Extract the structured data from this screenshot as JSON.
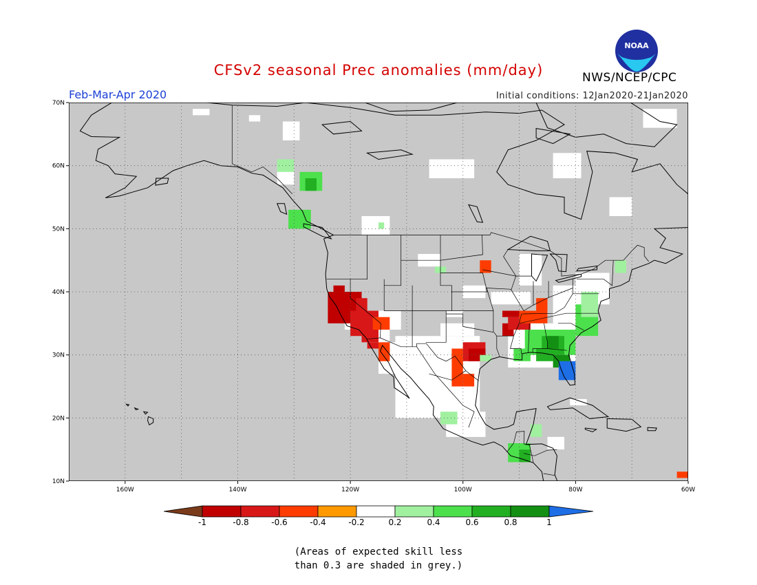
{
  "header": {
    "title": "CFSv2 seasonal Prec anomalies (mm/day)",
    "period": "Feb-Mar-Apr 2020",
    "initial_conditions": "Initial conditions: 12Jan2020-21Jan2020",
    "organization": "NWS/NCEP/CPC",
    "logo_text": "NOAA"
  },
  "colors": {
    "title": "#d40000",
    "period": "#1a3fd6",
    "land_grey": "#c8c8c8",
    "coast": "#000000"
  },
  "map": {
    "lon_range": [
      -170,
      -60
    ],
    "lat_range": [
      10,
      70
    ],
    "lat_labels": [
      "70N",
      "60N",
      "50N",
      "40N",
      "30N",
      "20N",
      "10N"
    ],
    "lon_labels": [
      "160W",
      "140W",
      "120W",
      "100W",
      "80W",
      "60W"
    ],
    "regions": [
      {
        "name": "California coast dry",
        "category": "-0.8"
      },
      {
        "name": "Southwest interior dry",
        "category": "-0.6"
      },
      {
        "name": "Central Texas dry",
        "category": "-0.8"
      },
      {
        "name": "Ohio Valley dry",
        "category": "-0.4"
      },
      {
        "name": "Southeast US wet",
        "category": "0.6"
      },
      {
        "name": "Florida wet",
        "category": "1"
      },
      {
        "name": "Southern Mexico wet",
        "category": "0.4"
      },
      {
        "name": "Central America wet",
        "category": "0.6"
      },
      {
        "name": "British Columbia wet",
        "category": "0.6"
      }
    ]
  },
  "colorbar": {
    "labels": [
      "-1",
      "-0.8",
      "-0.6",
      "-0.4",
      "-0.2",
      "0.2",
      "0.4",
      "0.6",
      "0.8",
      "1"
    ],
    "colors": [
      "#7a3b1a",
      "#c00000",
      "#d81818",
      "#ff3c00",
      "#ff9900",
      "#ffffff",
      "#a0f0a0",
      "#4ce04c",
      "#22b022",
      "#139013",
      "#1e6ee6"
    ]
  },
  "note": "(Areas of expected skill less\nthan 0.3 are shaded in grey.)"
}
